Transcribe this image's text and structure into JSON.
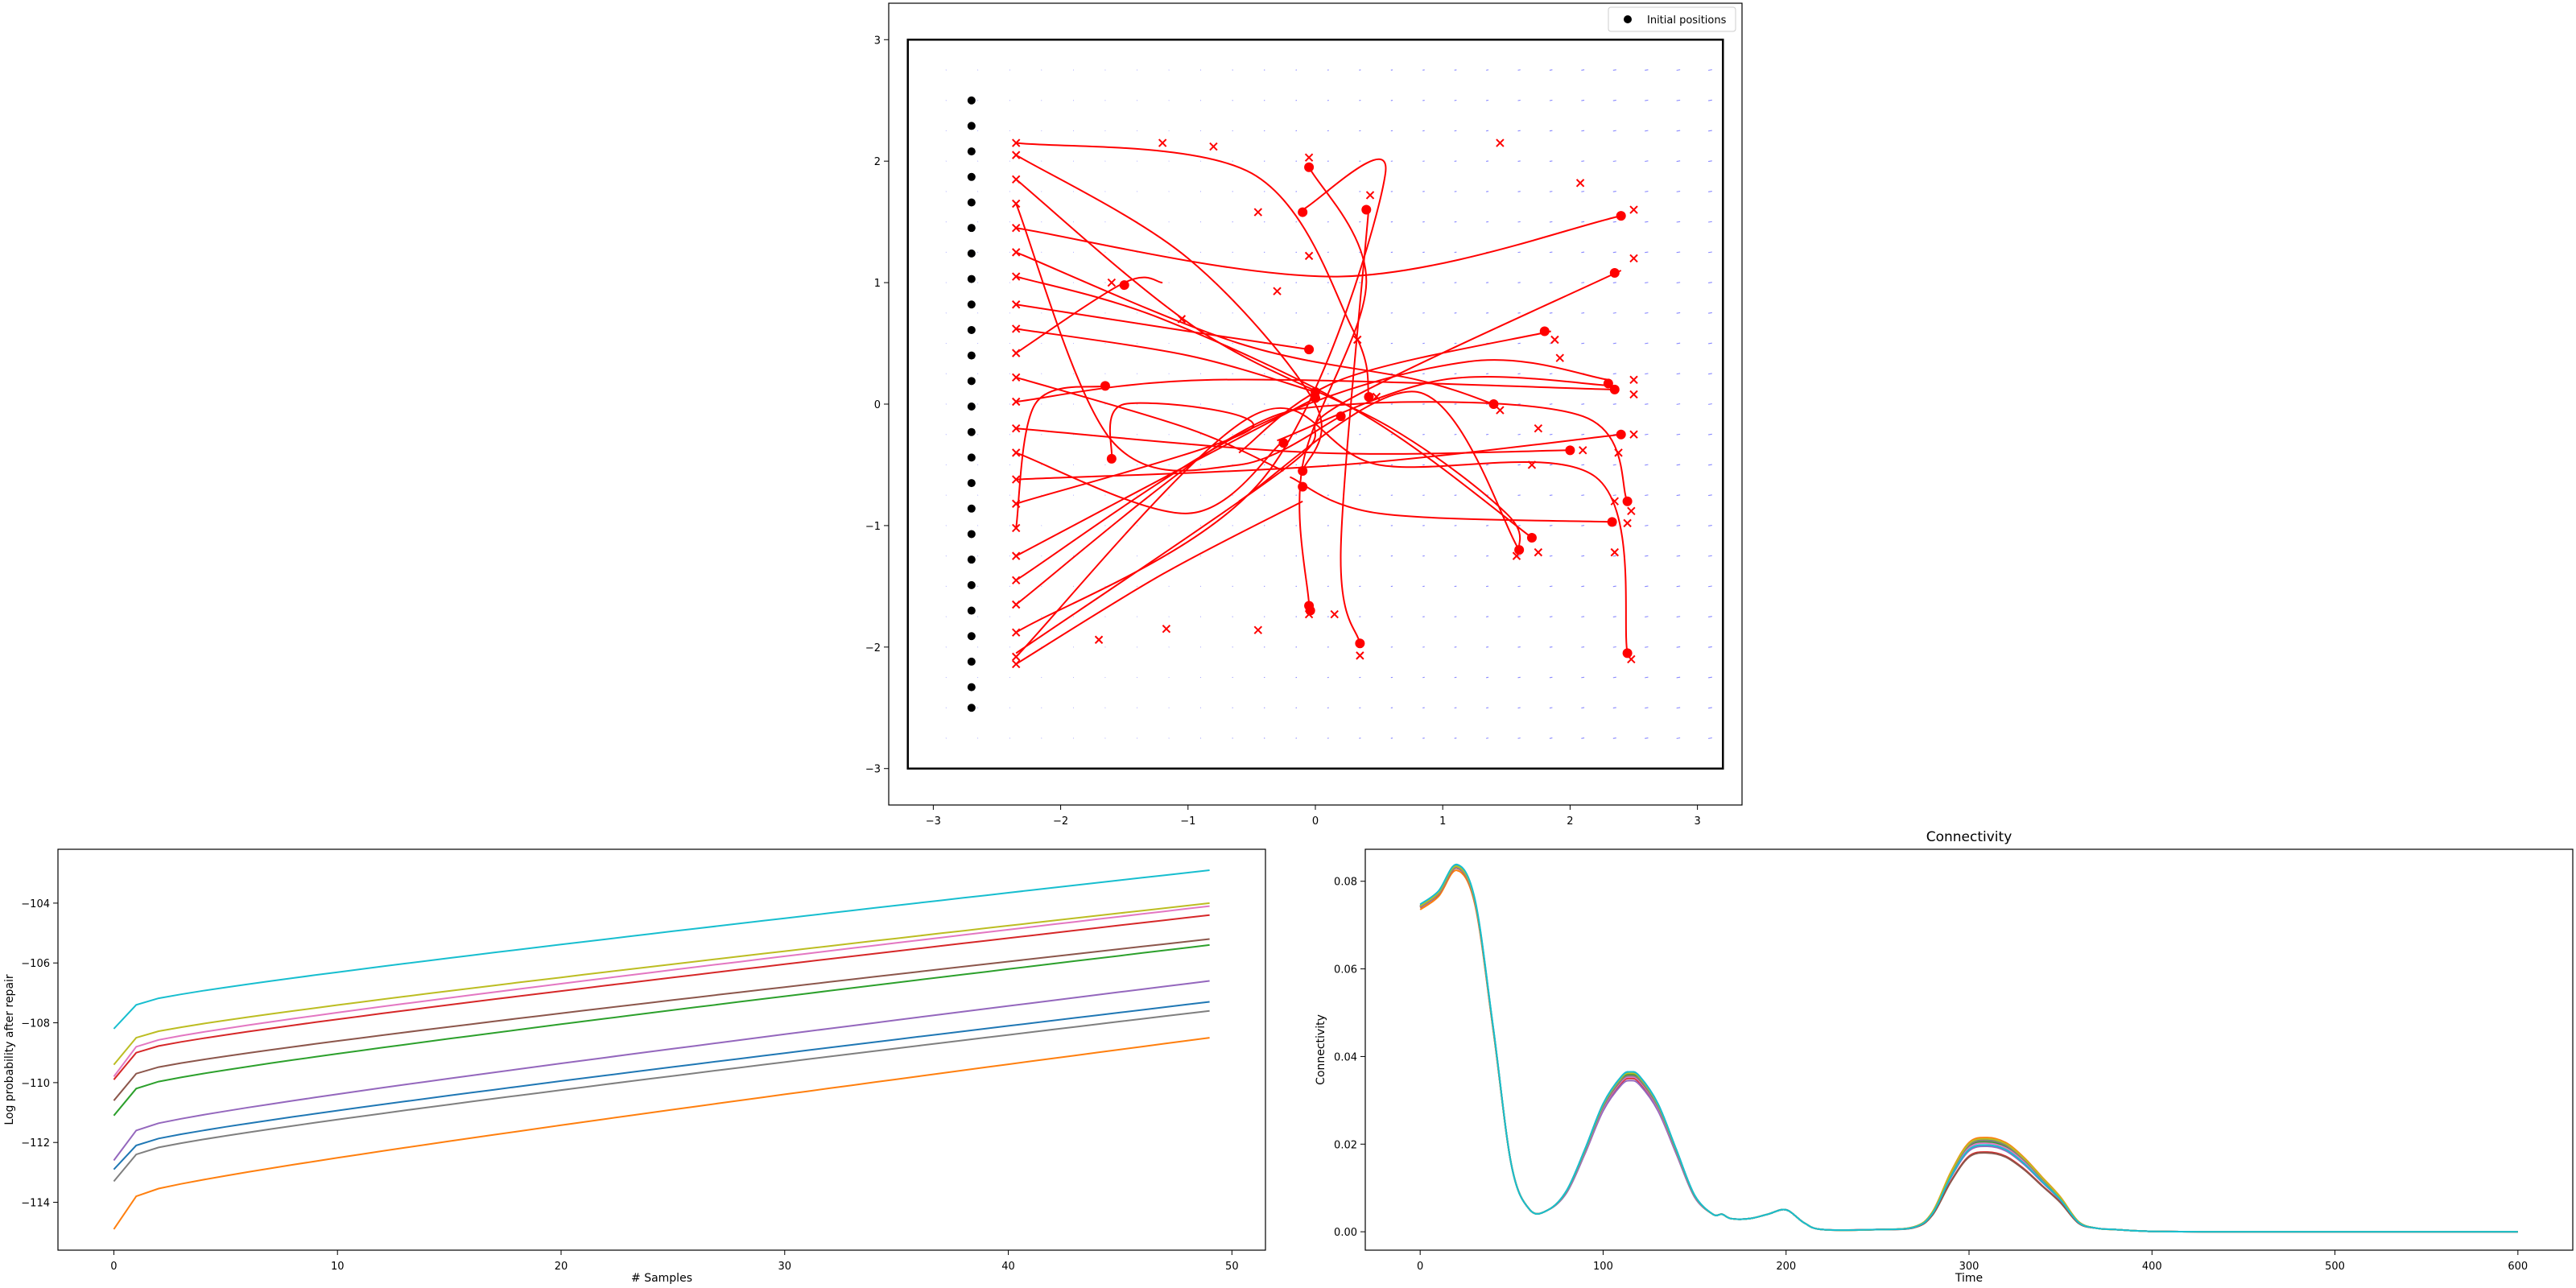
{
  "colors": {
    "trajectory": "#ff0000",
    "initial": "#000000",
    "field": "#6b6bff",
    "series_palette": [
      "#1f77b4",
      "#ff7f0e",
      "#2ca02c",
      "#d62728",
      "#9467bd",
      "#8c564b",
      "#e377c2",
      "#7f7f7f",
      "#bcbd22",
      "#17becf"
    ]
  },
  "chart_data": [
    {
      "type": "scatter",
      "title": "",
      "xlabel": "",
      "ylabel": "",
      "xlim": [
        -3.35,
        3.35
      ],
      "ylim": [
        -3.3,
        3.3
      ],
      "xticks": [
        -3,
        -2,
        -1,
        0,
        1,
        2,
        3
      ],
      "yticks": [
        -3,
        -2,
        -1,
        0,
        1,
        2,
        3
      ],
      "xtick_labels": [
        "−3",
        "−2",
        "−1",
        "0",
        "1",
        "2",
        "3"
      ],
      "ytick_labels": [
        "−3",
        "−2",
        "−1",
        "0",
        "1",
        "2",
        "3"
      ],
      "legend": {
        "placement": "top-right",
        "entries": [
          "Initial positions"
        ]
      },
      "boundary_box": {
        "x": [
          -3.2,
          3.2
        ],
        "y": [
          -3.0,
          3.0
        ]
      },
      "initial_positions": {
        "x": -2.7,
        "y": [
          2.5,
          2.29,
          2.08,
          1.87,
          1.66,
          1.45,
          1.24,
          1.03,
          0.82,
          0.61,
          0.4,
          0.19,
          -0.02,
          -0.23,
          -0.44,
          -0.65,
          -0.86,
          -1.07,
          -1.28,
          -1.49,
          -1.7,
          -1.91,
          -2.12,
          -2.33,
          -2.5
        ]
      },
      "trajectories": [
        [
          [
            -2.35,
            2.15
          ],
          [
            -0.5,
            1.9
          ],
          [
            0.3,
            0.6
          ],
          [
            0.42,
            0.06
          ]
        ],
        [
          [
            -2.35,
            2.05
          ],
          [
            -1.0,
            1.2
          ],
          [
            0.0,
            0.0
          ],
          [
            -0.1,
            -0.55
          ]
        ],
        [
          [
            -2.35,
            1.85
          ],
          [
            -0.9,
            0.6
          ],
          [
            0.6,
            -0.2
          ],
          [
            1.5,
            -0.9
          ],
          [
            1.6,
            -1.2
          ]
        ],
        [
          [
            -2.35,
            1.65
          ],
          [
            -1.6,
            -0.3
          ],
          [
            -0.6,
            -0.5
          ],
          [
            0.2,
            -0.1
          ]
        ],
        [
          [
            -2.35,
            1.45
          ],
          [
            0.2,
            1.05
          ],
          [
            2.4,
            1.55
          ]
        ],
        [
          [
            -2.35,
            1.25
          ],
          [
            -0.6,
            0.5
          ],
          [
            0.8,
            0.2
          ],
          [
            1.4,
            0.0
          ]
        ],
        [
          [
            -2.35,
            1.05
          ],
          [
            -1.2,
            0.7
          ],
          [
            0.4,
            -0.1
          ],
          [
            1.7,
            -1.1
          ]
        ],
        [
          [
            -2.35,
            0.82
          ],
          [
            -1.0,
            0.6
          ],
          [
            -0.05,
            0.45
          ]
        ],
        [
          [
            -2.35,
            0.62
          ],
          [
            -1.0,
            0.4
          ],
          [
            0.0,
            0.1
          ]
        ],
        [
          [
            -2.35,
            0.42
          ],
          [
            -1.5,
            1.0
          ],
          [
            -1.2,
            1.0
          ]
        ],
        [
          [
            -2.35,
            0.22
          ],
          [
            -1.0,
            -0.2
          ],
          [
            -0.25,
            -0.55
          ]
        ],
        [
          [
            -2.35,
            0.02
          ],
          [
            -0.8,
            0.2
          ],
          [
            2.35,
            0.12
          ]
        ],
        [
          [
            -2.35,
            -0.2
          ],
          [
            0.0,
            -0.4
          ],
          [
            2.0,
            -0.38
          ]
        ],
        [
          [
            -2.35,
            -0.4
          ],
          [
            -1.0,
            -0.9
          ],
          [
            -0.25,
            -0.3
          ]
        ],
        [
          [
            -2.35,
            -0.62
          ],
          [
            0.2,
            -0.5
          ],
          [
            2.4,
            -0.25
          ]
        ],
        [
          [
            -2.35,
            -0.82
          ],
          [
            -0.5,
            -0.2
          ],
          [
            -1.5,
            0.0
          ],
          [
            -1.6,
            -0.45
          ]
        ],
        [
          [
            -2.35,
            -1.02
          ],
          [
            -2.2,
            0.0
          ],
          [
            -1.65,
            0.15
          ]
        ],
        [
          [
            -2.35,
            -1.25
          ],
          [
            -1.0,
            -0.5
          ],
          [
            0.0,
            0.05
          ]
        ],
        [
          [
            -2.35,
            -1.45
          ],
          [
            -0.5,
            -0.2
          ],
          [
            1.2,
            0.35
          ],
          [
            2.3,
            0.2
          ]
        ],
        [
          [
            -2.35,
            -1.65
          ],
          [
            -0.7,
            -0.3
          ],
          [
            0.3,
            0.0
          ],
          [
            2.1,
            -0.1
          ],
          [
            2.45,
            -0.8
          ]
        ],
        [
          [
            -2.35,
            -1.88
          ],
          [
            -0.4,
            -0.6
          ],
          [
            0.55,
            1.9
          ],
          [
            -0.1,
            1.6
          ]
        ],
        [
          [
            -2.35,
            -2.08
          ],
          [
            -0.5,
            -0.1
          ],
          [
            0.5,
            -0.5
          ],
          [
            2.2,
            -0.6
          ],
          [
            2.45,
            -2.05
          ]
        ],
        [
          [
            -2.35,
            -2.14
          ],
          [
            -1.2,
            -1.4
          ],
          [
            -0.1,
            -0.8
          ]
        ],
        [
          [
            -2.35,
            -2.05
          ],
          [
            -0.2,
            -0.5
          ],
          [
            0.2,
            0.0
          ],
          [
            2.4,
            1.1
          ]
        ],
        [
          [
            -0.05,
            1.95
          ],
          [
            0.4,
            1.0
          ],
          [
            -0.1,
            -0.5
          ],
          [
            -0.05,
            -1.65
          ]
        ],
        [
          [
            0.42,
            1.62
          ],
          [
            0.2,
            -1.2
          ],
          [
            0.35,
            -1.97
          ]
        ],
        [
          [
            2.35,
            0.15
          ],
          [
            1.0,
            0.2
          ],
          [
            -0.3,
            -0.3
          ]
        ],
        [
          [
            1.85,
            0.6
          ],
          [
            0.2,
            0.2
          ],
          [
            -0.6,
            -0.4
          ]
        ],
        [
          [
            2.35,
            -0.97
          ],
          [
            0.5,
            -0.9
          ],
          [
            -0.2,
            -0.6
          ]
        ],
        [
          [
            -0.6,
            -0.8
          ],
          [
            0.8,
            0.1
          ],
          [
            1.6,
            -1.2
          ]
        ]
      ],
      "end_positions": [
        [
          0.42,
          0.06
        ],
        [
          -0.1,
          -0.55
        ],
        [
          1.6,
          -1.2
        ],
        [
          0.2,
          -0.1
        ],
        [
          2.4,
          1.55
        ],
        [
          1.4,
          0.0
        ],
        [
          1.7,
          -1.1
        ],
        [
          -0.05,
          0.45
        ],
        [
          0.0,
          0.1
        ],
        [
          -1.5,
          0.98
        ],
        [
          -0.25,
          -0.32
        ],
        [
          2.35,
          0.12
        ],
        [
          2.0,
          -0.38
        ],
        [
          2.4,
          -0.25
        ],
        [
          -1.6,
          -0.45
        ],
        [
          -1.65,
          0.15
        ],
        [
          0.0,
          0.05
        ],
        [
          2.3,
          0.17
        ],
        [
          2.45,
          -0.8
        ],
        [
          -0.1,
          1.58
        ],
        [
          2.45,
          -2.05
        ],
        [
          -0.1,
          -0.68
        ],
        [
          2.35,
          1.08
        ],
        [
          -0.05,
          -1.66
        ],
        [
          0.35,
          -1.97
        ],
        [
          1.8,
          0.6
        ],
        [
          0.4,
          1.6
        ],
        [
          2.33,
          -0.97
        ],
        [
          -0.05,
          1.95
        ],
        [
          -0.04,
          -1.7
        ]
      ],
      "end_markers": [
        [
          -2.35,
          2.15
        ],
        [
          -2.35,
          2.05
        ],
        [
          -2.35,
          1.85
        ],
        [
          -2.35,
          1.65
        ],
        [
          -2.35,
          1.45
        ],
        [
          -2.35,
          1.25
        ],
        [
          -2.35,
          1.05
        ],
        [
          -2.35,
          0.82
        ],
        [
          -2.35,
          0.62
        ],
        [
          -2.35,
          0.42
        ],
        [
          -2.35,
          0.22
        ],
        [
          -2.35,
          0.02
        ],
        [
          -2.35,
          -0.2
        ],
        [
          -2.35,
          -0.4
        ],
        [
          -2.35,
          -0.62
        ],
        [
          -2.35,
          -0.82
        ],
        [
          -2.35,
          -1.02
        ],
        [
          -2.35,
          -1.25
        ],
        [
          -2.35,
          -1.45
        ],
        [
          -2.35,
          -1.65
        ],
        [
          -2.35,
          -1.88
        ],
        [
          -2.35,
          -2.08
        ],
        [
          -2.35,
          -2.14
        ],
        [
          -1.2,
          2.15
        ],
        [
          -0.8,
          2.12
        ],
        [
          1.45,
          2.15
        ],
        [
          2.08,
          1.82
        ],
        [
          -0.45,
          1.58
        ],
        [
          -0.05,
          1.22
        ],
        [
          -0.3,
          0.93
        ],
        [
          -1.05,
          0.7
        ],
        [
          0.33,
          0.53
        ],
        [
          1.92,
          0.38
        ],
        [
          1.88,
          0.53
        ],
        [
          -1.6,
          1.0
        ],
        [
          0.48,
          0.06
        ],
        [
          1.45,
          -0.05
        ],
        [
          1.75,
          -0.2
        ],
        [
          2.1,
          -0.38
        ],
        [
          2.38,
          -0.4
        ],
        [
          1.7,
          -0.5
        ],
        [
          2.5,
          -0.25
        ],
        [
          2.5,
          0.2
        ],
        [
          2.5,
          0.08
        ],
        [
          2.35,
          -0.8
        ],
        [
          2.48,
          -0.88
        ],
        [
          2.45,
          -0.98
        ],
        [
          2.35,
          -1.22
        ],
        [
          1.75,
          -1.22
        ],
        [
          1.58,
          -1.25
        ],
        [
          0.15,
          -1.73
        ],
        [
          -0.05,
          -1.73
        ],
        [
          0.35,
          -2.07
        ],
        [
          2.48,
          -2.1
        ],
        [
          -0.45,
          -1.86
        ],
        [
          -1.17,
          -1.85
        ],
        [
          -1.7,
          -1.94
        ],
        [
          0.43,
          1.72
        ],
        [
          -0.05,
          2.03
        ],
        [
          2.5,
          1.6
        ],
        [
          2.5,
          1.2
        ]
      ]
    },
    {
      "type": "line",
      "title": "",
      "xlabel": "# Samples",
      "ylabel": "Log probability after repair",
      "xlim": [
        -2.5,
        51.5
      ],
      "ylim": [
        -115.6,
        -102.2
      ],
      "xticks": [
        0,
        10,
        20,
        30,
        40,
        50
      ],
      "yticks": [
        -114,
        -112,
        -110,
        -108,
        -106,
        -104
      ],
      "xtick_labels": [
        "0",
        "10",
        "20",
        "30",
        "40",
        "50"
      ],
      "ytick_labels": [
        "−114",
        "−112",
        "−110",
        "−108",
        "−106",
        "−104"
      ],
      "x_range": [
        0,
        49
      ],
      "series": [
        {
          "start": -112.9,
          "at1": -112.1,
          "end": -107.3,
          "color": "#1f77b4"
        },
        {
          "start": -114.9,
          "at1": -113.8,
          "end": -108.5,
          "color": "#ff7f0e"
        },
        {
          "start": -111.1,
          "at1": -110.2,
          "end": -105.4,
          "color": "#2ca02c"
        },
        {
          "start": -109.9,
          "at1": -109.0,
          "end": -104.4,
          "color": "#d62728"
        },
        {
          "start": -112.6,
          "at1": -111.6,
          "end": -106.6,
          "color": "#9467bd"
        },
        {
          "start": -110.6,
          "at1": -109.7,
          "end": -105.2,
          "color": "#8c564b"
        },
        {
          "start": -109.8,
          "at1": -108.8,
          "end": -104.1,
          "color": "#e377c2"
        },
        {
          "start": -113.3,
          "at1": -112.4,
          "end": -107.6,
          "color": "#7f7f7f"
        },
        {
          "start": -109.4,
          "at1": -108.5,
          "end": -104.0,
          "color": "#bcbd22"
        },
        {
          "start": -108.2,
          "at1": -107.4,
          "end": -102.9,
          "color": "#17becf"
        }
      ]
    },
    {
      "type": "line",
      "title": "Connectivity",
      "xlabel": "Time",
      "ylabel": "Connectivity",
      "xlim": [
        -30,
        630
      ],
      "ylim": [
        -0.0042,
        0.0873
      ],
      "xticks": [
        0,
        100,
        200,
        300,
        400,
        500,
        600
      ],
      "yticks": [
        0,
        0.02,
        0.04,
        0.06,
        0.08
      ],
      "xtick_labels": [
        "0",
        "100",
        "200",
        "300",
        "400",
        "500",
        "600"
      ],
      "ytick_labels": [
        "0.00",
        "0.02",
        "0.04",
        "0.06",
        "0.08"
      ],
      "x": [
        0,
        10,
        20,
        30,
        40,
        50,
        60,
        70,
        80,
        90,
        100,
        110,
        115,
        120,
        130,
        140,
        150,
        160,
        165,
        170,
        180,
        190,
        200,
        210,
        220,
        250,
        270,
        280,
        290,
        300,
        310,
        320,
        330,
        340,
        350,
        360,
        370,
        380,
        400,
        450,
        500,
        550,
        600
      ],
      "base": [
        0.074,
        0.077,
        0.083,
        0.075,
        0.046,
        0.015,
        0.005,
        0.005,
        0.009,
        0.018,
        0.028,
        0.034,
        0.035,
        0.034,
        0.028,
        0.018,
        0.008,
        0.004,
        0.004,
        0.003,
        0.003,
        0.004,
        0.005,
        0.002,
        0.0005,
        0.0005,
        0.001,
        0.004,
        0.012,
        0.018,
        0.019,
        0.018,
        0.015,
        0.011,
        0.007,
        0.002,
        0.0008,
        0.0005,
        0.0001,
        0.0,
        0.0,
        0.0,
        0.0
      ],
      "peak_offsets": [
        {
          "p0": 0.0005,
          "p1": 0.0015,
          "p2": 0.002,
          "color": "#1f77b4"
        },
        {
          "p0": -0.0005,
          "p1": 0.001,
          "p2": 0.0025,
          "color": "#ff7f0e"
        },
        {
          "p0": 0.0002,
          "p1": 0.0008,
          "p2": 0.0015,
          "color": "#2ca02c"
        },
        {
          "p0": 0.0,
          "p1": 0.0,
          "p2": -0.0008,
          "color": "#d62728"
        },
        {
          "p0": 0.0003,
          "p1": -0.0005,
          "p2": 0.0005,
          "color": "#9467bd"
        },
        {
          "p0": 0.0,
          "p1": 0.0005,
          "p2": -0.001,
          "color": "#8c564b"
        },
        {
          "p0": 0.0001,
          "p1": 0.0003,
          "p2": 0.0012,
          "color": "#e377c2"
        },
        {
          "p0": 0.0002,
          "p1": 0.0006,
          "p2": 0.0018,
          "color": "#7f7f7f"
        },
        {
          "p0": 0.0004,
          "p1": 0.0012,
          "p2": 0.0022,
          "color": "#bcbd22"
        },
        {
          "p0": 0.0008,
          "p1": 0.0015,
          "p2": 0.0008,
          "color": "#17becf"
        }
      ]
    }
  ]
}
